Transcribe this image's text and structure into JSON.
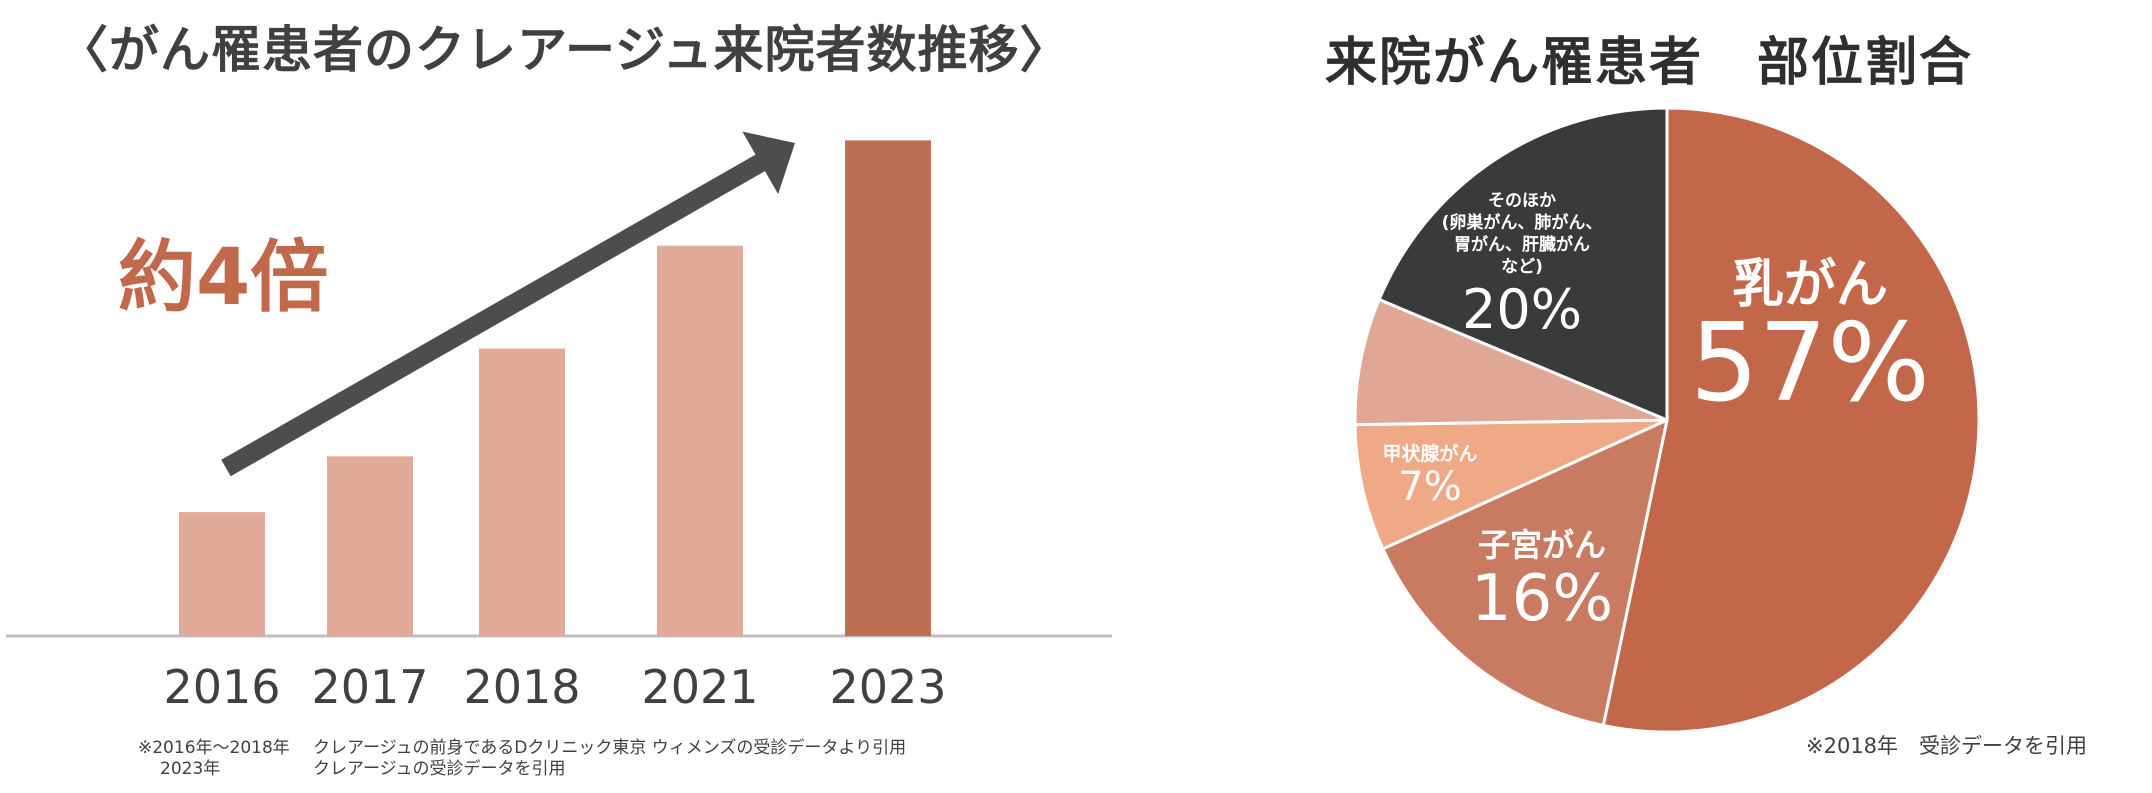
{
  "left": {
    "title": "〈がん罹患者のクレアージュ来院者数推移〉",
    "growth_label": "約4倍",
    "notes": {
      "row1_left": "※2016年～2018年",
      "row1_right": "クレアージュの前身であるDクリニック東京 ウィメンズの受診データより引用",
      "row2_left": "2023年",
      "row2_right": "クレアージュの受診データを引用"
    }
  },
  "right": {
    "title": "来院がん罹患者　部位割合",
    "note": "※2018年　受診データを引用"
  },
  "colors": {
    "bar_light": "#e2aa98",
    "bar_dark": "#bd6f54",
    "arrow": "#4d4d4d",
    "baseline": "#bfbfbf",
    "pie_breast": "#c2674a",
    "pie_uterus": "#c97b62",
    "pie_thyroid": "#f0a987",
    "pie_unlabeled": "#e0a696",
    "pie_other": "#3a3a3a"
  },
  "chart_data": [
    {
      "type": "bar",
      "categories": [
        "2016",
        "2017",
        "2018",
        "2021",
        "2023"
      ],
      "values": [
        1.0,
        1.45,
        2.32,
        3.15,
        4.0
      ],
      "highlight": "2023",
      "annotation": "約4倍",
      "ylim": [
        0,
        4.1
      ]
    },
    {
      "type": "pie",
      "title": "来院がん罹患者　部位割合",
      "slices": [
        {
          "label": "乳がん",
          "value": 57,
          "display": "57%",
          "color": "#c2674a"
        },
        {
          "label": "子宮がん",
          "value": 16,
          "display": "16%",
          "color": "#c97b62"
        },
        {
          "label": "甲状腺がん",
          "value": 7,
          "display": "7%",
          "color": "#f0a987"
        },
        {
          "label": "",
          "value": 7,
          "display": "",
          "color": "#e0a696"
        },
        {
          "label": "そのほか\n(卵巣がん、肺がん、\n胃がん、肝臓がん\nなど)",
          "value": 20,
          "display": "20%",
          "color": "#3a3a3a"
        }
      ]
    }
  ]
}
